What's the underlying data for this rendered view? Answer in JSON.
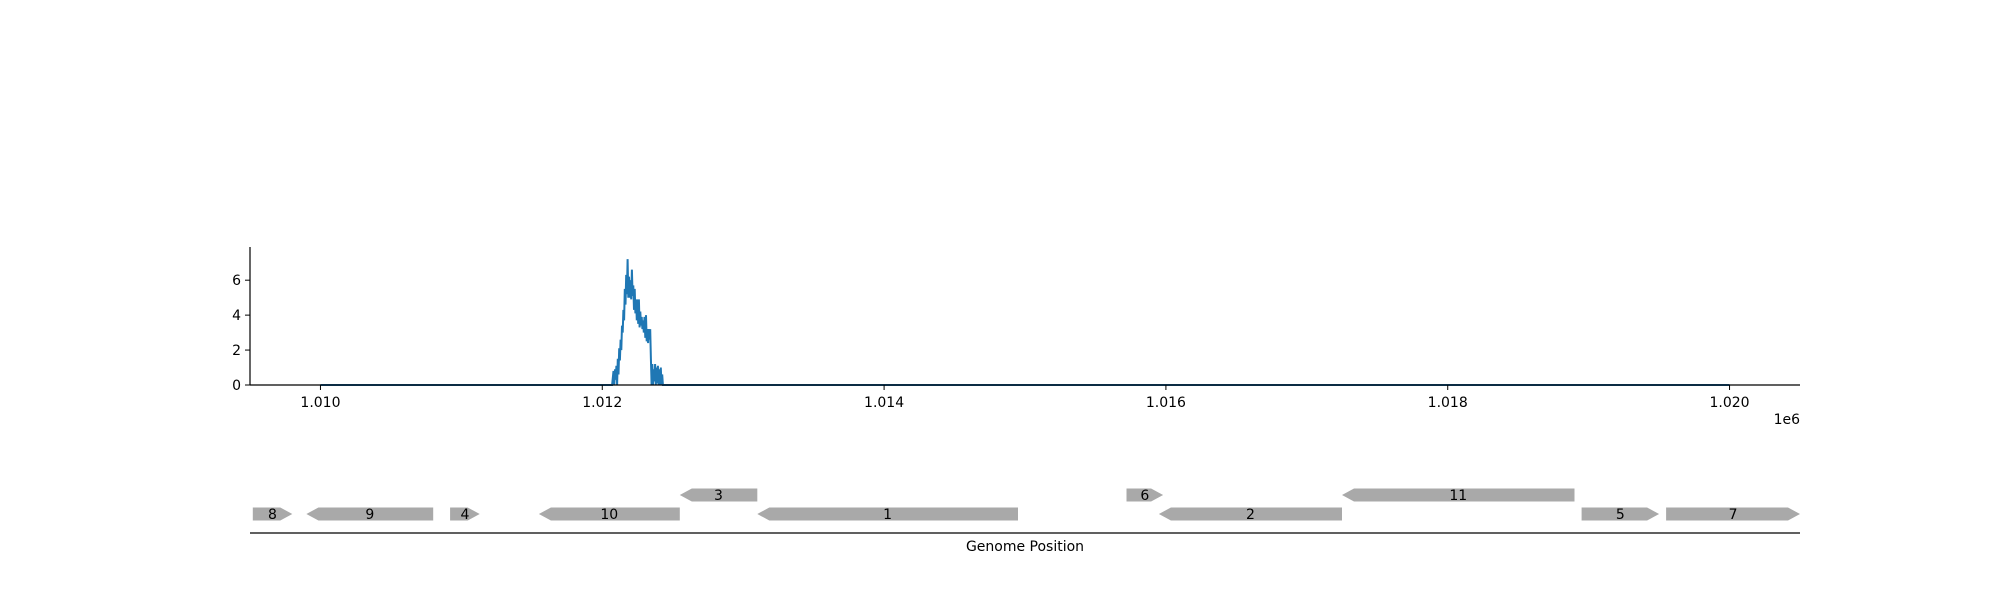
{
  "chart_data": [
    {
      "type": "line",
      "title": "",
      "xlabel": "",
      "ylabel": "",
      "x_scale_label": "1e6",
      "xlim": [
        1009500,
        1020500
      ],
      "ylim": [
        0,
        7.9
      ],
      "x_ticks": [
        {
          "value": 1010000,
          "label": "1.010"
        },
        {
          "value": 1012000,
          "label": "1.012"
        },
        {
          "value": 1014000,
          "label": "1.014"
        },
        {
          "value": 1016000,
          "label": "1.016"
        },
        {
          "value": 1018000,
          "label": "1.018"
        },
        {
          "value": 1020000,
          "label": "1.020"
        }
      ],
      "y_ticks": [
        {
          "value": 0,
          "label": "0"
        },
        {
          "value": 2,
          "label": "2"
        },
        {
          "value": 4,
          "label": "4"
        },
        {
          "value": 6,
          "label": "6"
        }
      ],
      "grid": false,
      "series": [
        {
          "color": "#1f77b4",
          "x": [
            1010000,
            1012070,
            1012080,
            1012085,
            1012090,
            1012095,
            1012100,
            1012105,
            1012110,
            1012115,
            1012120,
            1012125,
            1012130,
            1012135,
            1012140,
            1012145,
            1012150,
            1012155,
            1012160,
            1012165,
            1012170,
            1012175,
            1012180,
            1012185,
            1012190,
            1012195,
            1012200,
            1012205,
            1012210,
            1012215,
            1012220,
            1012225,
            1012230,
            1012235,
            1012240,
            1012245,
            1012250,
            1012255,
            1012260,
            1012265,
            1012270,
            1012275,
            1012280,
            1012285,
            1012290,
            1012295,
            1012300,
            1012305,
            1012310,
            1012315,
            1012320,
            1012325,
            1012330,
            1012335,
            1012340,
            1012345,
            1012350,
            1012355,
            1012360,
            1012365,
            1012370,
            1012375,
            1012380,
            1012385,
            1012390,
            1012395,
            1012400,
            1012405,
            1012410,
            1012415,
            1012420,
            1012425,
            1012430,
            1012440,
            1020000
          ],
          "y": [
            0,
            0,
            0.8,
            0,
            0.9,
            0.3,
            1.1,
            0,
            1.5,
            0.6,
            2.1,
            1.4,
            2.6,
            2.0,
            3.4,
            3.0,
            4.3,
            3.7,
            5.5,
            4.6,
            6.3,
            5.2,
            7.2,
            5.0,
            6.2,
            5.0,
            6.0,
            4.9,
            6.6,
            5.1,
            5.7,
            4.3,
            5.5,
            4.1,
            4.9,
            3.7,
            4.9,
            3.5,
            4.9,
            3.3,
            4.2,
            3.4,
            3.9,
            3.2,
            3.7,
            3.0,
            3.9,
            2.7,
            4.0,
            2.5,
            3.2,
            2.4,
            3.2,
            2.6,
            3.2,
            1.5,
            0,
            1.2,
            0,
            0.9,
            0.2,
            1.2,
            0,
            1.0,
            0.1,
            1.1,
            0,
            0.9,
            0,
            1.0,
            0,
            0.6,
            0,
            0,
            0
          ]
        }
      ]
    },
    {
      "type": "gene-map",
      "title": "",
      "xlabel": "Genome Position",
      "xlim": [
        1009500,
        1020500
      ],
      "genes": [
        {
          "label": "8",
          "start": 1009520,
          "end": 1009800,
          "strand": "+",
          "row": 0
        },
        {
          "label": "9",
          "start": 1009900,
          "end": 1010800,
          "strand": "-",
          "row": 0
        },
        {
          "label": "4",
          "start": 1010920,
          "end": 1011130,
          "strand": "+",
          "row": 0
        },
        {
          "label": "10",
          "start": 1011550,
          "end": 1012550,
          "strand": "-",
          "row": 0
        },
        {
          "label": "3",
          "start": 1012550,
          "end": 1013100,
          "strand": "-",
          "row": 1
        },
        {
          "label": "1",
          "start": 1013100,
          "end": 1014950,
          "strand": "-",
          "row": 0
        },
        {
          "label": "6",
          "start": 1015720,
          "end": 1015980,
          "strand": "+",
          "row": 1
        },
        {
          "label": "2",
          "start": 1015950,
          "end": 1017250,
          "strand": "-",
          "row": 0
        },
        {
          "label": "11",
          "start": 1017250,
          "end": 1018900,
          "strand": "-",
          "row": 1
        },
        {
          "label": "5",
          "start": 1018950,
          "end": 1019500,
          "strand": "+",
          "row": 0
        },
        {
          "label": "7",
          "start": 1019550,
          "end": 1020500,
          "strand": "+",
          "row": 0
        }
      ],
      "gene_color": "#a9a9a9"
    }
  ]
}
